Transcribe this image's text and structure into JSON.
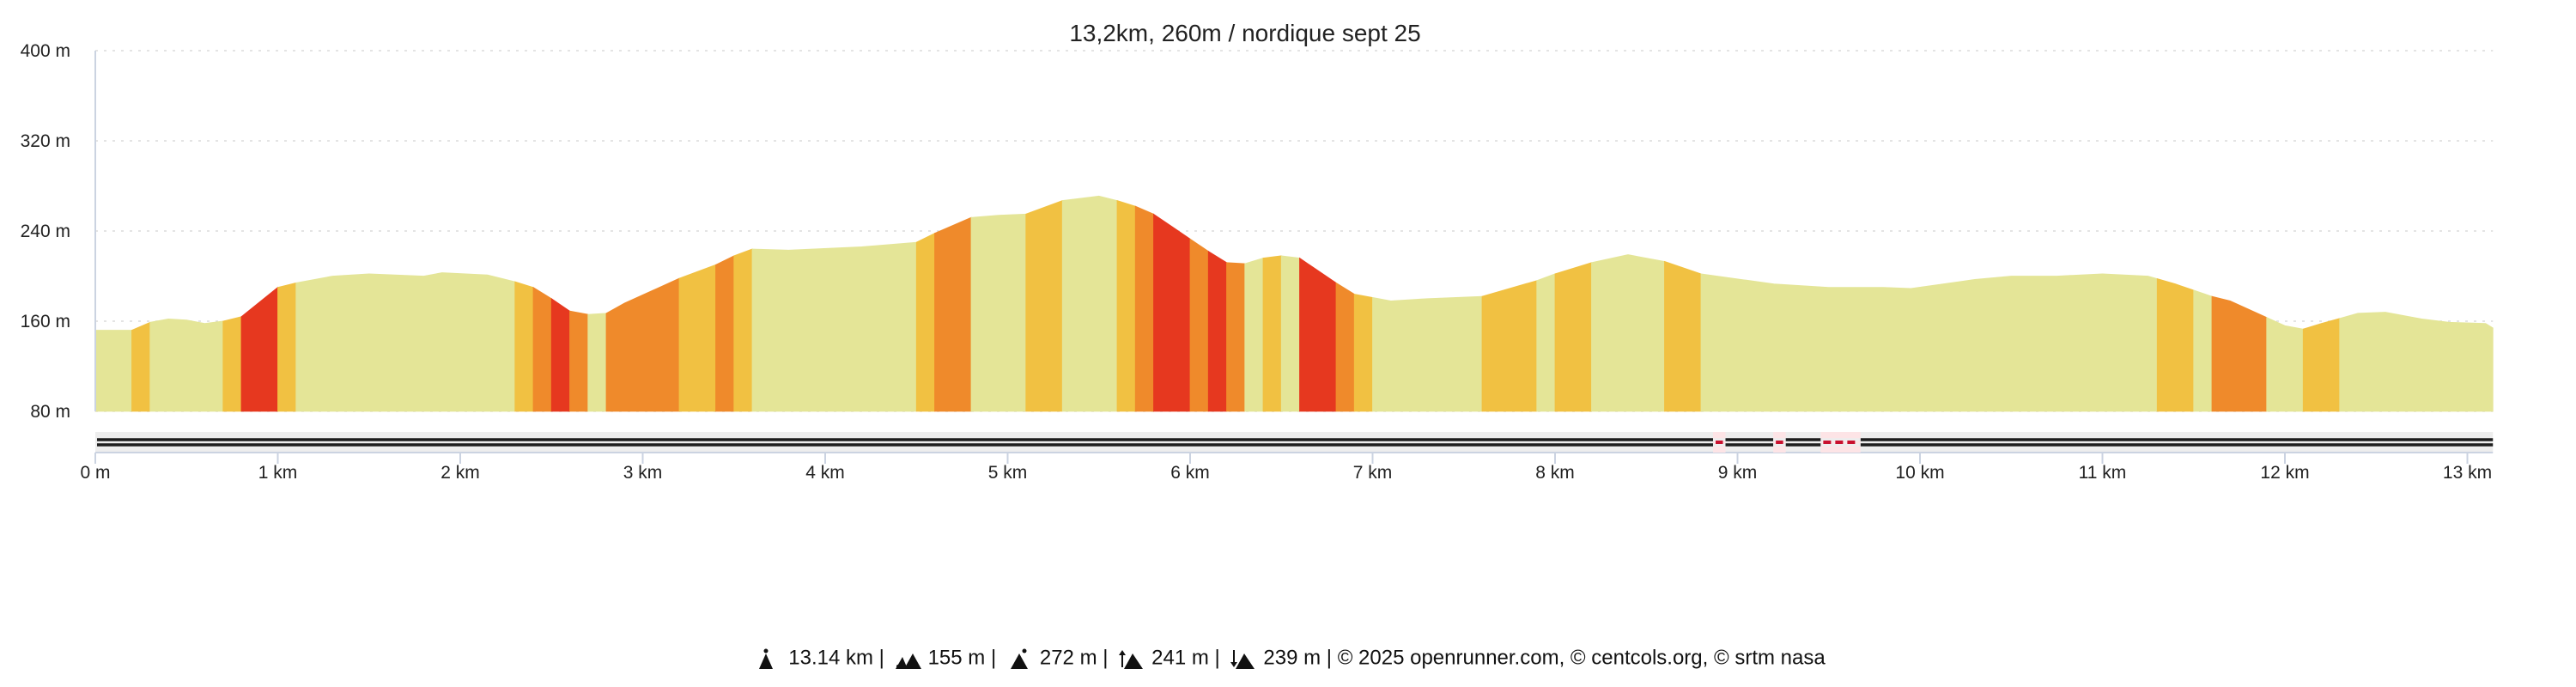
{
  "chart_data": {
    "type": "area",
    "title": "13,2km, 260m / nordique sept 25",
    "xlabel": "",
    "ylabel": "",
    "xlim": [
      0,
      13.14
    ],
    "ylim": [
      80,
      400
    ],
    "grid": true,
    "y_ticks": [
      {
        "v": 80,
        "label": "80 m"
      },
      {
        "v": 160,
        "label": "160 m"
      },
      {
        "v": 240,
        "label": "240 m"
      },
      {
        "v": 320,
        "label": "320 m"
      },
      {
        "v": 400,
        "label": "400 m"
      }
    ],
    "x_ticks": [
      {
        "v": 0,
        "label": "0 m"
      },
      {
        "v": 1,
        "label": "1 km"
      },
      {
        "v": 2,
        "label": "2 km"
      },
      {
        "v": 3,
        "label": "3 km"
      },
      {
        "v": 4,
        "label": "4 km"
      },
      {
        "v": 5,
        "label": "5 km"
      },
      {
        "v": 6,
        "label": "6 km"
      },
      {
        "v": 7,
        "label": "7 km"
      },
      {
        "v": 8,
        "label": "8 km"
      },
      {
        "v": 9,
        "label": "9 km"
      },
      {
        "v": 10,
        "label": "10 km"
      },
      {
        "v": 11,
        "label": "11 km"
      },
      {
        "v": 12,
        "label": "12 km"
      },
      {
        "v": 13,
        "label": "13 km"
      }
    ],
    "profile_km": [
      0,
      0.2,
      0.3,
      0.4,
      0.5,
      0.6,
      0.7,
      0.8,
      1.0,
      1.1,
      1.3,
      1.5,
      1.8,
      1.9,
      2.15,
      2.3,
      2.4,
      2.5,
      2.6,
      2.7,
      2.8,
      2.9,
      3.2,
      3.4,
      3.5,
      3.6,
      3.8,
      4.2,
      4.5,
      4.6,
      4.8,
      4.95,
      5.1,
      5.3,
      5.5,
      5.6,
      5.7,
      5.8,
      5.9,
      6.0,
      6.1,
      6.2,
      6.3,
      6.4,
      6.5,
      6.6,
      6.8,
      6.9,
      7.1,
      7.3,
      7.6,
      7.9,
      8.0,
      8.2,
      8.4,
      8.6,
      8.8,
      9.2,
      9.5,
      9.8,
      9.95,
      10.3,
      10.5,
      10.75,
      11.0,
      11.25,
      11.4,
      11.6,
      11.7,
      12.0,
      12.1,
      12.2,
      12.4,
      12.55,
      12.75,
      12.9,
      13.1,
      13.14
    ],
    "profile_m": [
      152,
      152,
      159,
      162,
      161,
      158,
      160,
      164,
      190,
      194,
      200,
      202,
      200,
      203,
      201,
      195,
      190,
      180,
      169,
      166,
      167,
      176,
      198,
      210,
      218,
      224,
      223,
      226,
      230,
      238,
      252,
      254,
      255,
      267,
      271,
      267,
      262,
      255,
      244,
      233,
      222,
      212,
      211,
      216,
      218,
      216,
      194,
      184,
      178,
      180,
      182,
      196,
      202,
      212,
      219,
      213,
      202,
      193,
      190,
      190,
      189,
      197,
      200,
      200,
      202,
      200,
      193,
      182,
      178,
      156,
      153,
      158,
      167,
      168,
      162,
      159,
      158,
      154
    ],
    "slope_colors": {
      "flat": "#e4e597",
      "moderate": "#f1c142",
      "steep": "#ef8a2b",
      "very_steep": "#e6381f"
    },
    "segments": [
      [
        0,
        0.2,
        "flat"
      ],
      [
        0.2,
        0.3,
        "moderate"
      ],
      [
        0.3,
        0.7,
        "flat"
      ],
      [
        0.7,
        0.8,
        "moderate"
      ],
      [
        0.8,
        1.0,
        "very_steep"
      ],
      [
        1.0,
        1.1,
        "moderate"
      ],
      [
        1.1,
        2.3,
        "flat"
      ],
      [
        2.3,
        2.4,
        "moderate"
      ],
      [
        2.4,
        2.5,
        "steep"
      ],
      [
        2.5,
        2.6,
        "very_steep"
      ],
      [
        2.6,
        2.7,
        "steep"
      ],
      [
        2.7,
        2.8,
        "flat"
      ],
      [
        2.8,
        3.2,
        "steep"
      ],
      [
        3.2,
        3.4,
        "moderate"
      ],
      [
        3.4,
        3.5,
        "steep"
      ],
      [
        3.5,
        3.6,
        "moderate"
      ],
      [
        3.6,
        4.5,
        "flat"
      ],
      [
        4.5,
        4.6,
        "moderate"
      ],
      [
        4.6,
        4.8,
        "steep"
      ],
      [
        4.8,
        5.1,
        "flat"
      ],
      [
        5.1,
        5.3,
        "moderate"
      ],
      [
        5.3,
        5.6,
        "flat"
      ],
      [
        5.6,
        5.7,
        "moderate"
      ],
      [
        5.7,
        5.8,
        "steep"
      ],
      [
        5.8,
        6.0,
        "very_steep"
      ],
      [
        6.0,
        6.1,
        "steep"
      ],
      [
        6.1,
        6.2,
        "very_steep"
      ],
      [
        6.2,
        6.3,
        "steep"
      ],
      [
        6.3,
        6.4,
        "flat"
      ],
      [
        6.4,
        6.5,
        "moderate"
      ],
      [
        6.5,
        6.6,
        "flat"
      ],
      [
        6.6,
        6.8,
        "very_steep"
      ],
      [
        6.8,
        6.9,
        "steep"
      ],
      [
        6.9,
        7.0,
        "moderate"
      ],
      [
        7.0,
        7.6,
        "flat"
      ],
      [
        7.6,
        7.9,
        "moderate"
      ],
      [
        7.9,
        8.0,
        "flat"
      ],
      [
        8.0,
        8.2,
        "moderate"
      ],
      [
        8.2,
        8.6,
        "flat"
      ],
      [
        8.6,
        8.8,
        "moderate"
      ],
      [
        8.8,
        11.3,
        "flat"
      ],
      [
        11.3,
        11.5,
        "moderate"
      ],
      [
        11.5,
        11.6,
        "flat"
      ],
      [
        11.6,
        11.9,
        "steep"
      ],
      [
        11.9,
        12.1,
        "flat"
      ],
      [
        12.1,
        12.3,
        "moderate"
      ],
      [
        12.3,
        13.14,
        "flat"
      ]
    ],
    "surface_track": {
      "red_marks_km": [
        [
          8.88,
          8.92
        ],
        [
          9.21,
          9.25
        ]
      ],
      "red_dashed_km": [
        [
          9.47,
          9.66
        ]
      ],
      "line_color": "#1d1d1d",
      "mark_color": "#c8102e"
    }
  },
  "footer": {
    "distance": "13.14 km",
    "min_alt": "155 m",
    "max_alt": "272 m",
    "ascent": "241 m",
    "descent": "239 m",
    "sep": " | ",
    "credits": "© 2025 openrunner.com, © centcols.org, © srtm nasa"
  }
}
